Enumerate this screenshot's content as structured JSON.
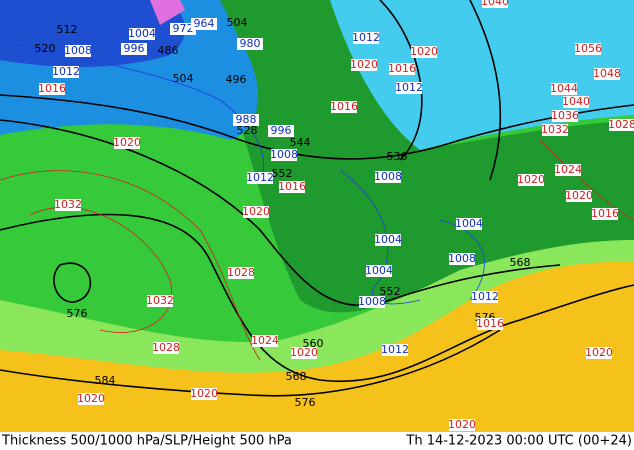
{
  "map": {
    "title": "Thickness 500/1000 hPa/SLP/Height 500 hPa",
    "valid_time": "Th 14-12-2023 00:00 UTC (00+24)",
    "thickness_labels": [
      512,
      520,
      486,
      504,
      504,
      496,
      528,
      544,
      552,
      536,
      568,
      552,
      560,
      568,
      576,
      584,
      576,
      576
    ],
    "low_pressure_labels": [
      1004,
      1008,
      996,
      1012,
      980,
      1012,
      1012,
      988,
      996,
      1008,
      1012,
      1008,
      1004,
      1004,
      1004,
      1008,
      1008,
      1012,
      1012,
      972,
      964
    ],
    "high_pressure_labels": [
      1016,
      1020,
      1032,
      1020,
      1028,
      1032,
      1028,
      1024,
      1020,
      1020,
      1020,
      1016,
      1020,
      1016,
      1020,
      1056,
      1048,
      1044,
      1040,
      1036,
      1032,
      1028,
      1024,
      1020,
      1020,
      1016,
      1016,
      1016,
      1020,
      1020,
      1040
    ]
  }
}
